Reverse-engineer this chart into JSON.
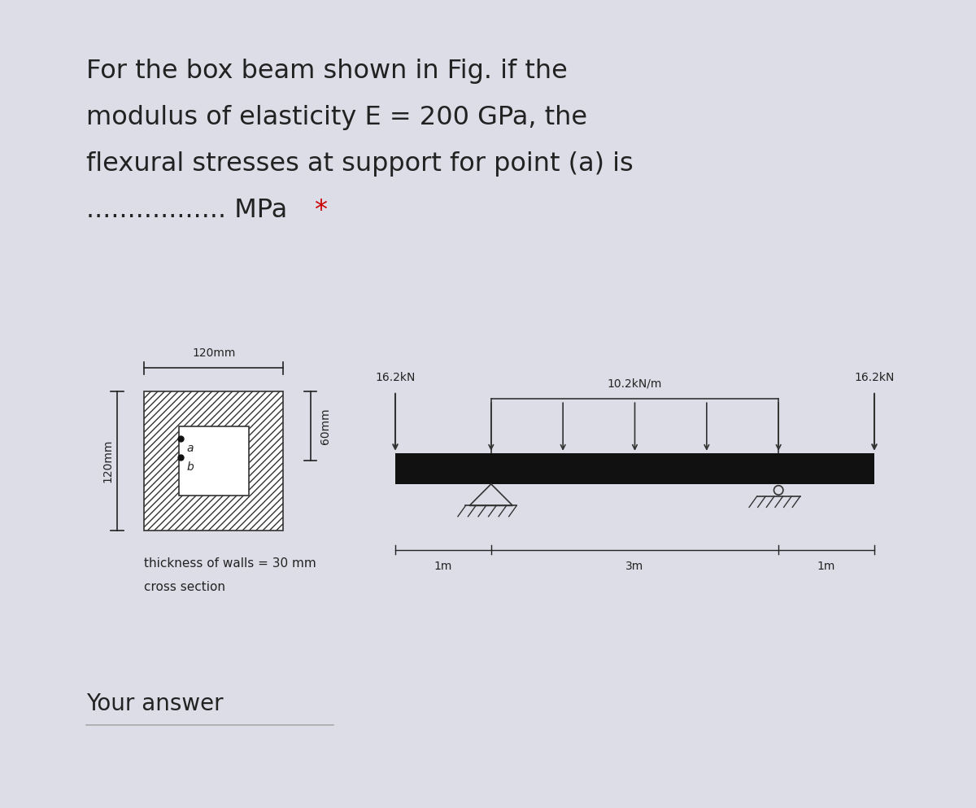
{
  "bg_color": "#dddde8",
  "card_color": "#ffffff",
  "title_line1": "For the box beam shown in Fig. if the",
  "title_line2": "modulus of elasticity E = 200 GPa, the",
  "title_line3": "flexural stresses at support for point (a) is",
  "title_line4_dots": "................. MPa ",
  "title_line4_star": "*",
  "cross_section_label_top": "120mm",
  "cross_section_label_left": "120mm",
  "cross_section_label_right": "60mm",
  "thickness_text": "thickness of walls = 30 mm",
  "cross_section_text": "cross section",
  "point_a_label": "a",
  "point_b_label": "b",
  "beam_label_left": "16.2kN",
  "beam_label_right": "16.2kN",
  "beam_label_dist": "10.2kN/m",
  "beam_dim1": "1m",
  "beam_dim2": "3m",
  "beam_dim3": "1m",
  "your_answer_text": "Your answer",
  "font_color": "#222222",
  "star_color": "#cc0000",
  "hatch_color": "#aaaaaa"
}
